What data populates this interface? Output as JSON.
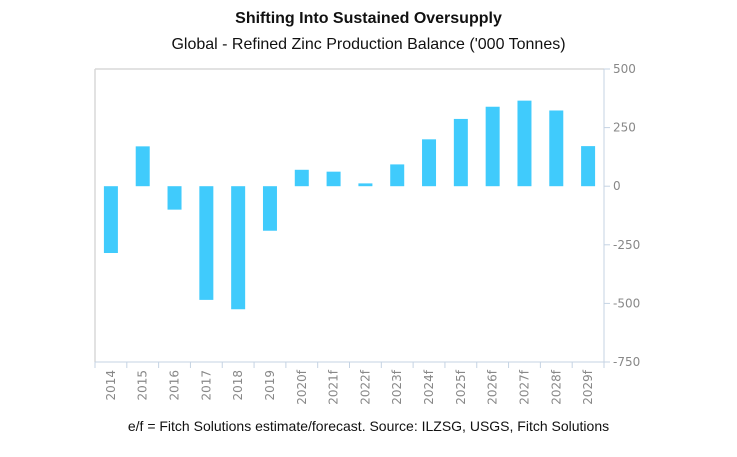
{
  "chart_data": {
    "type": "bar",
    "title": "Shifting Into Sustained Oversupply",
    "subtitle": "Global - Refined Zinc Production Balance ('000 Tonnes)",
    "xlabel": "",
    "ylabel": "",
    "categories": [
      "2014",
      "2015",
      "2016",
      "2017",
      "2018",
      "2019",
      "2020f",
      "2021f",
      "2022f",
      "2023f",
      "2024f",
      "2025f",
      "2026f",
      "2027f",
      "2028f",
      "2029f"
    ],
    "values": [
      -285,
      170,
      -100,
      -485,
      -525,
      -190,
      70,
      62,
      12,
      93,
      200,
      287,
      339,
      365,
      323,
      171
    ],
    "ylim": [
      -750,
      500
    ],
    "yticks": [
      500,
      250,
      0,
      -250,
      -500,
      -750
    ],
    "y_axis_side": "right",
    "grid": false,
    "legend": "none",
    "bar_color": "#40CBFC",
    "footnote": "e/f = Fitch Solutions estimate/forecast. Source: ILZSG, USGS, Fitch Solutions"
  }
}
